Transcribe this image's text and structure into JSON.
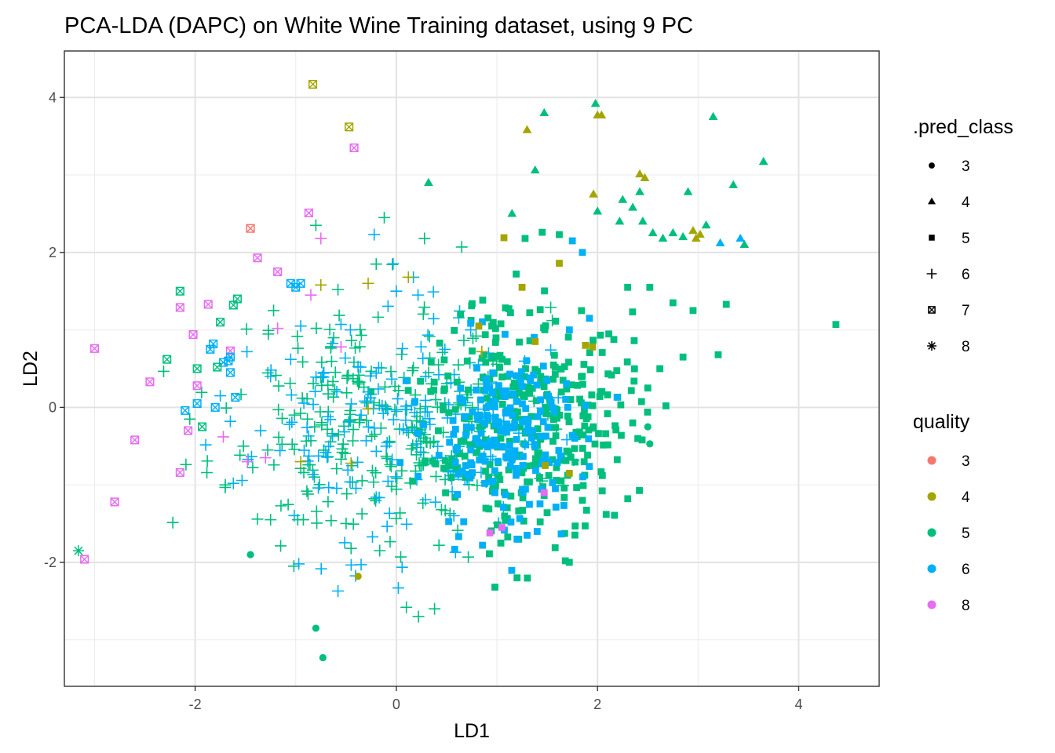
{
  "chart_data": {
    "type": "scatter",
    "title": "PCA-LDA (DAPC) on White Wine Training dataset, using 9 PC",
    "xlabel": "LD1",
    "ylabel": "LD2",
    "xlim": [
      -3.3,
      4.8
    ],
    "ylim": [
      -3.6,
      4.6
    ],
    "x_ticks": [
      -2,
      0,
      2,
      4
    ],
    "y_ticks": [
      -2,
      0,
      2,
      4
    ],
    "x_tick_labels": [
      "-2",
      "0",
      "2",
      "4"
    ],
    "y_tick_labels": [
      "-2",
      "0",
      "2",
      "4"
    ],
    "grid": true,
    "legend_position": "right",
    "legend_shape": {
      "title": ".pred_class",
      "entries": [
        {
          "label": "3",
          "shape": "circle"
        },
        {
          "label": "4",
          "shape": "triangle"
        },
        {
          "label": "5",
          "shape": "square"
        },
        {
          "label": "6",
          "shape": "plus"
        },
        {
          "label": "7",
          "shape": "square-cross"
        },
        {
          "label": "8",
          "shape": "asterisk"
        }
      ]
    },
    "legend_color": {
      "title": "quality",
      "entries": [
        {
          "label": "3",
          "color": "#F8766D"
        },
        {
          "label": "4",
          "color": "#A3A500"
        },
        {
          "label": "5",
          "color": "#00BF7D"
        },
        {
          "label": "6",
          "color": "#00B0F6"
        },
        {
          "label": "8",
          "color": "#E76BF3"
        }
      ]
    },
    "colors": {
      "3": "#F8766D",
      "4": "#A3A500",
      "5": "#00BF7D",
      "6": "#00B0F6",
      "8": "#E76BF3"
    },
    "point_columns": [
      "LD1",
      "LD2",
      "pred_class",
      "quality"
    ],
    "points": [
      [
        -1.45,
        -1.9,
        "3",
        "5"
      ],
      [
        -0.8,
        -2.85,
        "3",
        "5"
      ],
      [
        -0.73,
        -3.23,
        "3",
        "5"
      ],
      [
        -0.38,
        -2.18,
        "3",
        "4"
      ],
      [
        2.5,
        -0.25,
        "3",
        "5"
      ],
      [
        2.52,
        -0.47,
        "3",
        "5"
      ],
      [
        0.32,
        2.9,
        "4",
        "5"
      ],
      [
        1.15,
        2.5,
        "4",
        "5"
      ],
      [
        1.3,
        3.58,
        "4",
        "4"
      ],
      [
        1.38,
        3.06,
        "4",
        "5"
      ],
      [
        1.47,
        3.8,
        "4",
        "5"
      ],
      [
        1.98,
        3.92,
        "4",
        "5"
      ],
      [
        2.0,
        3.77,
        "4",
        "4"
      ],
      [
        2.04,
        3.77,
        "4",
        "4"
      ],
      [
        1.96,
        2.75,
        "4",
        "4"
      ],
      [
        2.0,
        2.53,
        "4",
        "5"
      ],
      [
        2.25,
        2.68,
        "4",
        "5"
      ],
      [
        2.35,
        2.58,
        "4",
        "5"
      ],
      [
        2.42,
        2.78,
        "4",
        "5"
      ],
      [
        2.42,
        3.01,
        "4",
        "4"
      ],
      [
        2.47,
        2.96,
        "4",
        "4"
      ],
      [
        2.22,
        2.4,
        "4",
        "5"
      ],
      [
        2.45,
        2.4,
        "4",
        "5"
      ],
      [
        2.55,
        2.25,
        "4",
        "5"
      ],
      [
        2.65,
        2.18,
        "4",
        "5"
      ],
      [
        2.75,
        2.25,
        "4",
        "5"
      ],
      [
        2.85,
        2.2,
        "4",
        "5"
      ],
      [
        2.9,
        2.78,
        "4",
        "5"
      ],
      [
        2.95,
        2.28,
        "4",
        "4"
      ],
      [
        2.98,
        2.18,
        "4",
        "4"
      ],
      [
        3.02,
        2.23,
        "4",
        "4"
      ],
      [
        3.08,
        2.35,
        "4",
        "5"
      ],
      [
        3.15,
        3.75,
        "4",
        "5"
      ],
      [
        3.35,
        2.87,
        "4",
        "5"
      ],
      [
        3.65,
        3.17,
        "4",
        "5"
      ],
      [
        3.22,
        2.12,
        "4",
        "6"
      ],
      [
        3.42,
        2.18,
        "4",
        "6"
      ],
      [
        3.46,
        2.1,
        "4",
        "5"
      ],
      [
        1.07,
        2.19,
        "5",
        "4"
      ],
      [
        1.28,
        2.18,
        "5",
        "5"
      ],
      [
        1.45,
        2.26,
        "5",
        "5"
      ],
      [
        1.62,
        2.23,
        "5",
        "5"
      ],
      [
        1.75,
        2.15,
        "5",
        "6"
      ],
      [
        1.62,
        1.86,
        "5",
        "4"
      ],
      [
        2.52,
        1.55,
        "5",
        "5"
      ],
      [
        2.75,
        1.35,
        "5",
        "5"
      ],
      [
        2.95,
        1.25,
        "5",
        "5"
      ],
      [
        3.28,
        1.33,
        "5",
        "5"
      ],
      [
        3.2,
        0.68,
        "5",
        "5"
      ],
      [
        4.37,
        1.07,
        "5",
        "5"
      ],
      [
        2.85,
        0.65,
        "5",
        "5"
      ],
      [
        2.62,
        0.5,
        "5",
        "5"
      ],
      [
        2.68,
        0.02,
        "5",
        "5"
      ],
      [
        2.5,
        0.25,
        "5",
        "5"
      ],
      [
        2.35,
        -0.2,
        "5",
        "5"
      ],
      [
        1.85,
        -1.2,
        "5",
        "5"
      ],
      [
        1.68,
        -1.98,
        "5",
        "5"
      ],
      [
        1.72,
        -2.0,
        "5",
        "5"
      ],
      [
        0.98,
        -2.32,
        "5",
        "5"
      ],
      [
        1.2,
        -2.2,
        "5",
        "5"
      ],
      [
        1.05,
        -1.55,
        "5",
        "8"
      ],
      [
        0.93,
        -1.62,
        "5",
        "8"
      ],
      [
        1.47,
        -1.1,
        "5",
        "8"
      ],
      [
        1.72,
        -0.85,
        "5",
        "4"
      ],
      [
        1.38,
        0.85,
        "5",
        "4"
      ],
      [
        1.25,
        1.55,
        "5",
        "4"
      ],
      [
        1.88,
        0.8,
        "5",
        "4"
      ],
      [
        1.95,
        0.78,
        "5",
        "4"
      ],
      [
        0.82,
        1.05,
        "5",
        "4"
      ],
      [
        1.48,
        -0.75,
        "5",
        "4"
      ],
      [
        2.3,
        1.55,
        "5",
        "5"
      ],
      [
        1.92,
        1.15,
        "5",
        "6"
      ],
      [
        1.72,
        1.0,
        "5",
        "6"
      ],
      [
        1.2,
        -1.7,
        "5",
        "6"
      ],
      [
        1.3,
        -1.65,
        "5",
        "6"
      ],
      [
        0.98,
        -1.1,
        "5",
        "6"
      ],
      [
        0.74,
        -0.55,
        "5",
        "6"
      ],
      [
        0.8,
        -0.4,
        "5",
        "6"
      ],
      [
        1.85,
        2.0,
        "5",
        "6"
      ],
      [
        -1.72,
        -0.38,
        "6",
        "8"
      ],
      [
        -1.48,
        -0.7,
        "6",
        "8"
      ],
      [
        -1.3,
        -0.65,
        "6",
        "8"
      ],
      [
        -1.18,
        1.02,
        "6",
        "8"
      ],
      [
        -0.85,
        1.45,
        "6",
        "8"
      ],
      [
        -0.75,
        2.18,
        "6",
        "8"
      ],
      [
        -0.55,
        0.78,
        "6",
        "8"
      ],
      [
        -0.95,
        1.05,
        "6",
        "6"
      ],
      [
        -1.05,
        0.62,
        "6",
        "6"
      ],
      [
        -1.25,
        0.4,
        "6",
        "6"
      ],
      [
        -1.35,
        -0.3,
        "6",
        "6"
      ],
      [
        -1.62,
        -0.98,
        "6",
        "6"
      ],
      [
        -1.75,
        0.15,
        "6",
        "6"
      ],
      [
        -1.65,
        -0.18,
        "6",
        "6"
      ],
      [
        -0.97,
        -2.02,
        "6",
        "6"
      ],
      [
        -0.58,
        -2.37,
        "6",
        "6"
      ],
      [
        -0.35,
        -2.03,
        "6",
        "6"
      ],
      [
        0.02,
        -2.33,
        "6",
        "6"
      ],
      [
        -0.68,
        -0.12,
        "6",
        "6"
      ],
      [
        -0.28,
        0.2,
        "6",
        "6"
      ],
      [
        0.0,
        1.5,
        "6",
        "6"
      ],
      [
        0.17,
        1.68,
        "6",
        "6"
      ],
      [
        -0.22,
        2.23,
        "6",
        "6"
      ],
      [
        -0.72,
        0.45,
        "6",
        "6"
      ],
      [
        -0.1,
        -0.5,
        "6",
        "6"
      ],
      [
        -0.35,
        -0.1,
        "6",
        "6"
      ],
      [
        -1.7,
        -1.0,
        "6",
        "5"
      ],
      [
        -1.52,
        -0.5,
        "6",
        "5"
      ],
      [
        -1.22,
        1.25,
        "6",
        "5"
      ],
      [
        -0.12,
        2.45,
        "6",
        "5"
      ],
      [
        -0.8,
        2.35,
        "6",
        "5"
      ],
      [
        0.28,
        2.18,
        "6",
        "5"
      ],
      [
        0.65,
        2.07,
        "6",
        "5"
      ],
      [
        -0.2,
        1.85,
        "6",
        "5"
      ],
      [
        -0.58,
        1.52,
        "6",
        "5"
      ],
      [
        0.1,
        -2.58,
        "6",
        "5"
      ],
      [
        0.22,
        -2.7,
        "6",
        "5"
      ],
      [
        0.38,
        -2.6,
        "6",
        "5"
      ],
      [
        -0.45,
        -1.82,
        "6",
        "5"
      ],
      [
        -0.98,
        -1.45,
        "6",
        "5"
      ],
      [
        -1.25,
        -1.45,
        "6",
        "5"
      ],
      [
        -0.28,
        1.6,
        "6",
        "4"
      ],
      [
        0.12,
        1.68,
        "6",
        "4"
      ],
      [
        -0.95,
        -0.7,
        "6",
        "4"
      ],
      [
        -0.75,
        1.58,
        "6",
        "4"
      ],
      [
        0.85,
        0.72,
        "6",
        "4"
      ],
      [
        -0.28,
        -0.02,
        "6",
        "4"
      ],
      [
        -0.45,
        -0.72,
        "6",
        "4"
      ],
      [
        -0.83,
        4.17,
        "7",
        "4"
      ],
      [
        -0.47,
        3.62,
        "7",
        "4"
      ],
      [
        -0.42,
        3.35,
        "7",
        "8"
      ],
      [
        -0.87,
        2.51,
        "7",
        "8"
      ],
      [
        -1.38,
        1.93,
        "7",
        "8"
      ],
      [
        -1.18,
        1.75,
        "7",
        "8"
      ],
      [
        -1.45,
        2.31,
        "7",
        "3"
      ],
      [
        -1.05,
        1.6,
        "7",
        "6"
      ],
      [
        -0.95,
        1.6,
        "7",
        "6"
      ],
      [
        -1.0,
        1.55,
        "7",
        "6"
      ],
      [
        -2.15,
        1.5,
        "7",
        "5"
      ],
      [
        -2.15,
        1.29,
        "7",
        "8"
      ],
      [
        -1.87,
        1.33,
        "7",
        "8"
      ],
      [
        -1.75,
        1.1,
        "7",
        "5"
      ],
      [
        -1.62,
        1.32,
        "7",
        "5"
      ],
      [
        -1.58,
        1.4,
        "7",
        "5"
      ],
      [
        -2.02,
        0.94,
        "7",
        "8"
      ],
      [
        -1.82,
        0.82,
        "7",
        "6"
      ],
      [
        -1.85,
        0.75,
        "7",
        "6"
      ],
      [
        -1.65,
        0.73,
        "7",
        "8"
      ],
      [
        -1.65,
        0.65,
        "7",
        "6"
      ],
      [
        -1.67,
        0.6,
        "7",
        "6"
      ],
      [
        -1.72,
        0.58,
        "7",
        "6"
      ],
      [
        -2.28,
        0.62,
        "7",
        "5"
      ],
      [
        -1.98,
        0.5,
        "7",
        "5"
      ],
      [
        -1.78,
        0.52,
        "7",
        "5"
      ],
      [
        -1.65,
        0.45,
        "7",
        "6"
      ],
      [
        -3.0,
        0.76,
        "7",
        "8"
      ],
      [
        -2.45,
        0.33,
        "7",
        "8"
      ],
      [
        -1.98,
        0.28,
        "7",
        "8"
      ],
      [
        -1.6,
        0.13,
        "7",
        "6"
      ],
      [
        -1.8,
        0.0,
        "7",
        "6"
      ],
      [
        -1.98,
        0.05,
        "7",
        "6"
      ],
      [
        -2.1,
        -0.04,
        "7",
        "6"
      ],
      [
        -1.93,
        -0.25,
        "7",
        "5"
      ],
      [
        -2.07,
        -0.3,
        "7",
        "8"
      ],
      [
        -2.6,
        -0.42,
        "7",
        "8"
      ],
      [
        -2.15,
        -0.84,
        "7",
        "8"
      ],
      [
        -2.8,
        -1.22,
        "7",
        "8"
      ],
      [
        -3.1,
        -1.96,
        "7",
        "8"
      ],
      [
        -3.16,
        -1.85,
        "8",
        "5"
      ]
    ],
    "scatter_clouds": [
      {
        "pred_class": "6",
        "quality": "5",
        "count": 260,
        "x_center": -0.2,
        "y_center": -0.2,
        "x_spread": 0.75,
        "y_spread": 0.75,
        "seed": 11
      },
      {
        "pred_class": "6",
        "quality": "6",
        "count": 170,
        "x_center": 0.0,
        "y_center": -0.3,
        "x_spread": 0.7,
        "y_spread": 0.7,
        "seed": 23
      },
      {
        "pred_class": "5",
        "quality": "5",
        "count": 340,
        "x_center": 1.3,
        "y_center": -0.1,
        "x_spread": 0.5,
        "y_spread": 0.75,
        "seed": 37
      },
      {
        "pred_class": "5",
        "quality": "6",
        "count": 200,
        "x_center": 1.1,
        "y_center": -0.4,
        "x_spread": 0.4,
        "y_spread": 0.6,
        "seed": 53
      }
    ]
  }
}
